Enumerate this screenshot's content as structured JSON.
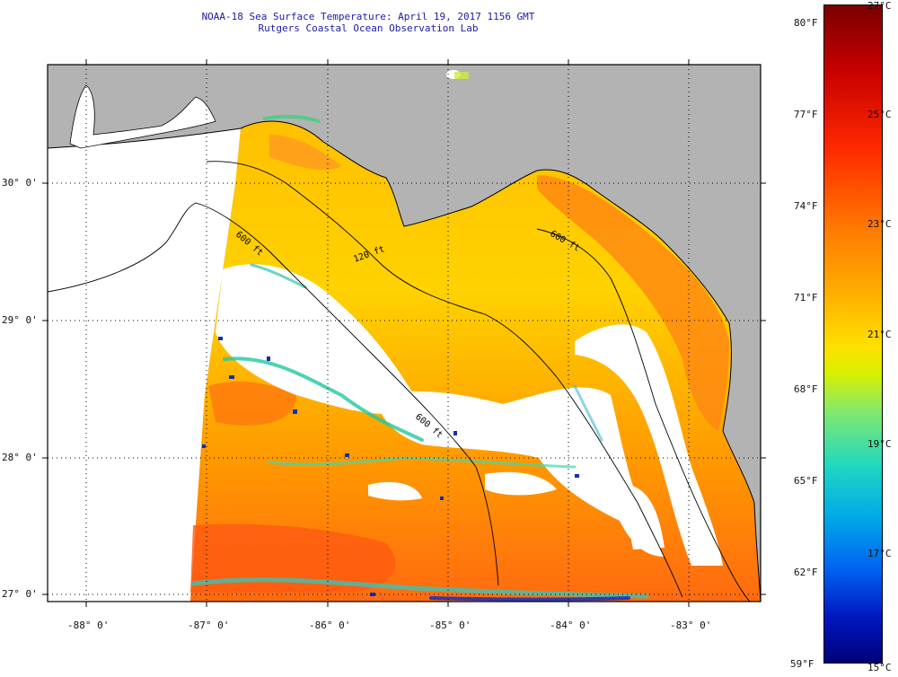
{
  "header": {
    "title": "NOAA-18 Sea Surface Temperature:  April 19, 2017 1156 GMT",
    "subtitle": "Rutgers Coastal Ocean Observation Lab"
  },
  "map": {
    "lat_labels": [
      "30° 0'",
      "29° 0'",
      "28° 0'",
      "27° 0'"
    ],
    "lon_labels": [
      "-88° 0'",
      "-87° 0'",
      "-86° 0'",
      "-85° 0'",
      "-84° 0'",
      "-83° 0'"
    ],
    "contour_labels": [
      "120 ft",
      "600 ft",
      "600 ft",
      "600 ft"
    ]
  },
  "colorbar": {
    "fahrenheit_labels": [
      "80°F",
      "77°F",
      "74°F",
      "71°F",
      "68°F",
      "65°F",
      "62°F",
      "59°F"
    ],
    "celsius_labels": [
      "27°C",
      "25°C",
      "23°C",
      "21°C",
      "19°C",
      "17°C",
      "15°C"
    ],
    "range_c": [
      15,
      27
    ]
  },
  "colors": {
    "land": "#b3b3b3",
    "title_text": "#1a1aa6",
    "warm": "#ff8c00",
    "cool": "#ffd400",
    "cloud": "#ffffff"
  }
}
